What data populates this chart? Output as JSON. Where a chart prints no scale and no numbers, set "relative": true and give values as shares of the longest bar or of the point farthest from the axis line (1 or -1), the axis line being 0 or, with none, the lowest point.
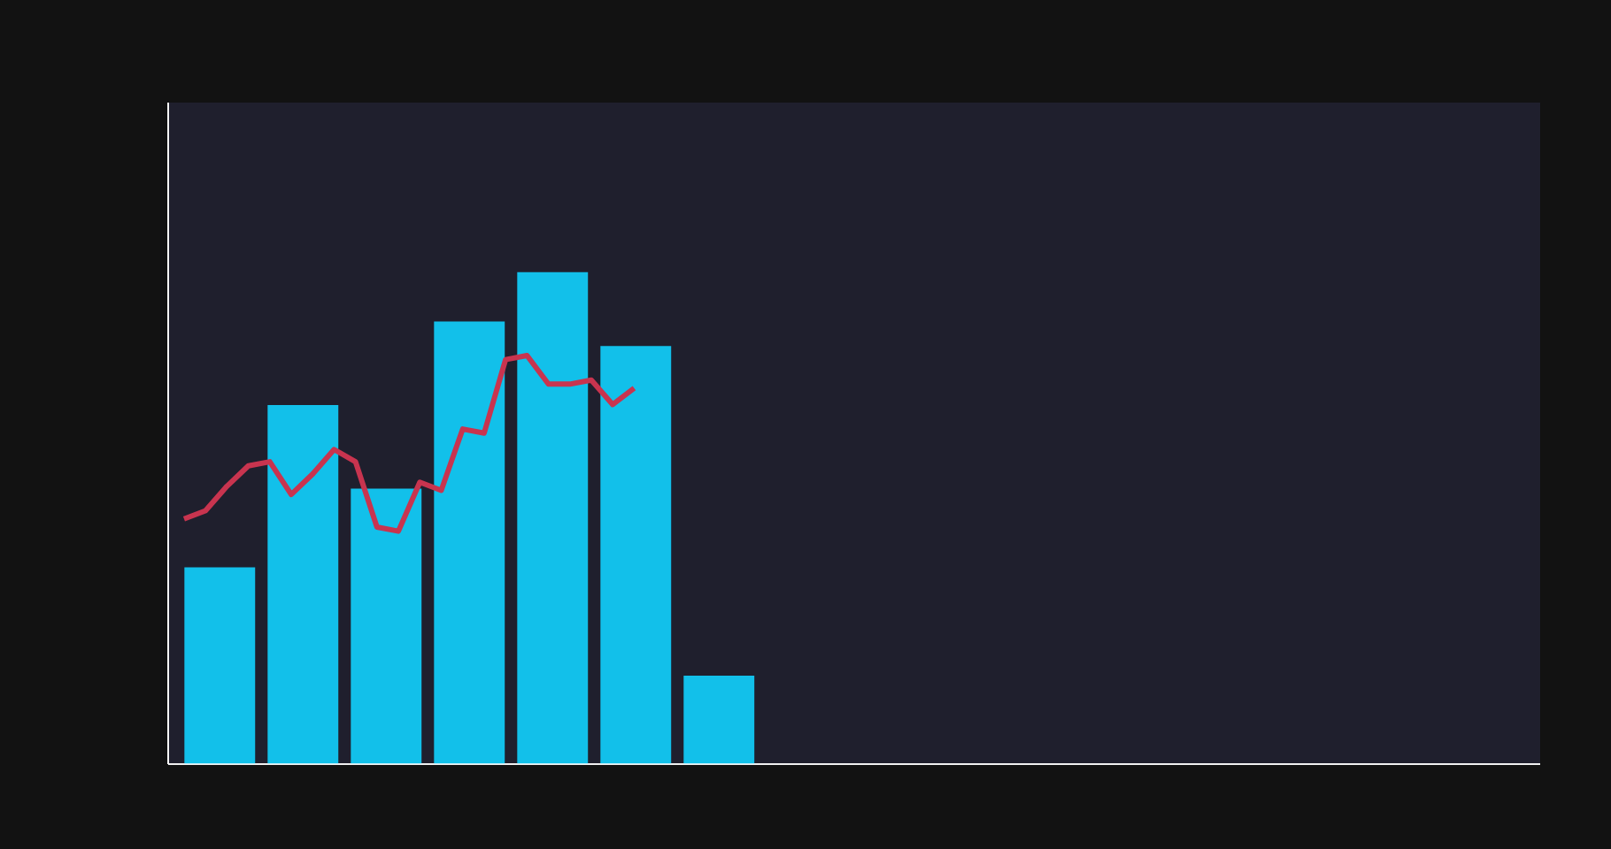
{
  "chart_data": [
    {
      "type": "bar",
      "relative": true,
      "color": "#12c0ea",
      "categories": [
        null,
        null,
        null,
        null,
        null,
        null,
        null
      ],
      "values": [
        0.4,
        0.73,
        0.56,
        0.9,
        1.0,
        0.85,
        0.18
      ]
    },
    {
      "type": "line",
      "relative": true,
      "color": "#c8344f",
      "categories": [
        null,
        null,
        null,
        null,
        null,
        null,
        null,
        null,
        null,
        null,
        null,
        null,
        null,
        null,
        null,
        null,
        null,
        null,
        null,
        null,
        null,
        null
      ],
      "values": [
        0.6,
        0.62,
        0.68,
        0.73,
        0.74,
        0.66,
        0.71,
        0.77,
        0.74,
        0.58,
        0.57,
        0.69,
        0.67,
        0.82,
        0.81,
        0.99,
        1.0,
        0.93,
        0.93,
        0.94,
        0.88,
        0.92
      ]
    }
  ]
}
